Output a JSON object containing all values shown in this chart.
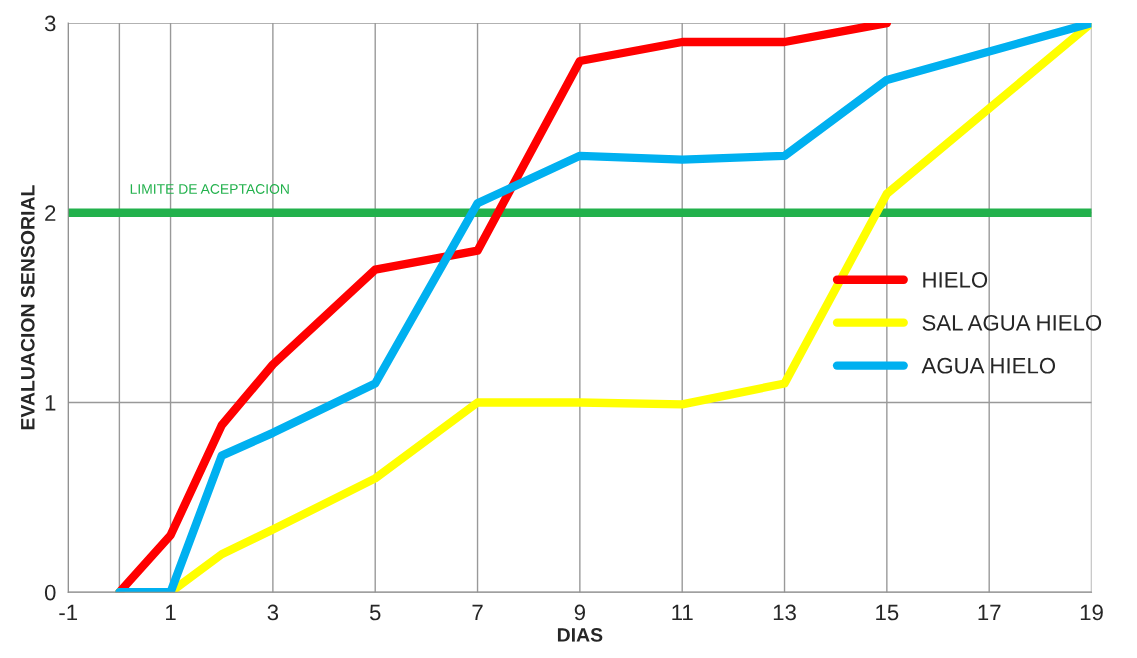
{
  "chart_data": {
    "type": "line",
    "xlabel": "DIAS",
    "ylabel": "EVALUACION SENSORIAL",
    "x": [
      0,
      1,
      2,
      3,
      5,
      7,
      9,
      11,
      13,
      15,
      19
    ],
    "series": [
      {
        "name": "HIELO",
        "color": "#ff0000",
        "values": [
          0,
          0.3,
          0.88,
          1.2,
          1.7,
          1.8,
          2.8,
          2.9,
          2.9,
          3,
          null
        ]
      },
      {
        "name": "SAL AGUA HIELO",
        "color": "#ffff00",
        "values": [
          0,
          0,
          0.2,
          0.33,
          0.6,
          1.0,
          1.0,
          0.99,
          1.1,
          2.1,
          3
        ]
      },
      {
        "name": "AGUA HIELO",
        "color": "#00b0f0",
        "values": [
          0,
          0,
          0.72,
          0.84,
          1.1,
          2.05,
          2.3,
          2.28,
          2.3,
          2.7,
          3
        ]
      }
    ],
    "xlim": [
      -1,
      19
    ],
    "xticks": [
      -1,
      {
        "value": 0,
        "label": null
      },
      1,
      3,
      5,
      7,
      9,
      11,
      13,
      15,
      17,
      19
    ],
    "ylim": [
      0,
      3
    ],
    "yticks": [
      0,
      1,
      2,
      3
    ],
    "ref_lines": [
      {
        "axis": "y",
        "value": 2,
        "label": "LIMITE DE ACEPTACION",
        "color": "#22b14c"
      }
    ],
    "grid": true,
    "legend": "right",
    "line_style": "solid",
    "marker": "none"
  }
}
